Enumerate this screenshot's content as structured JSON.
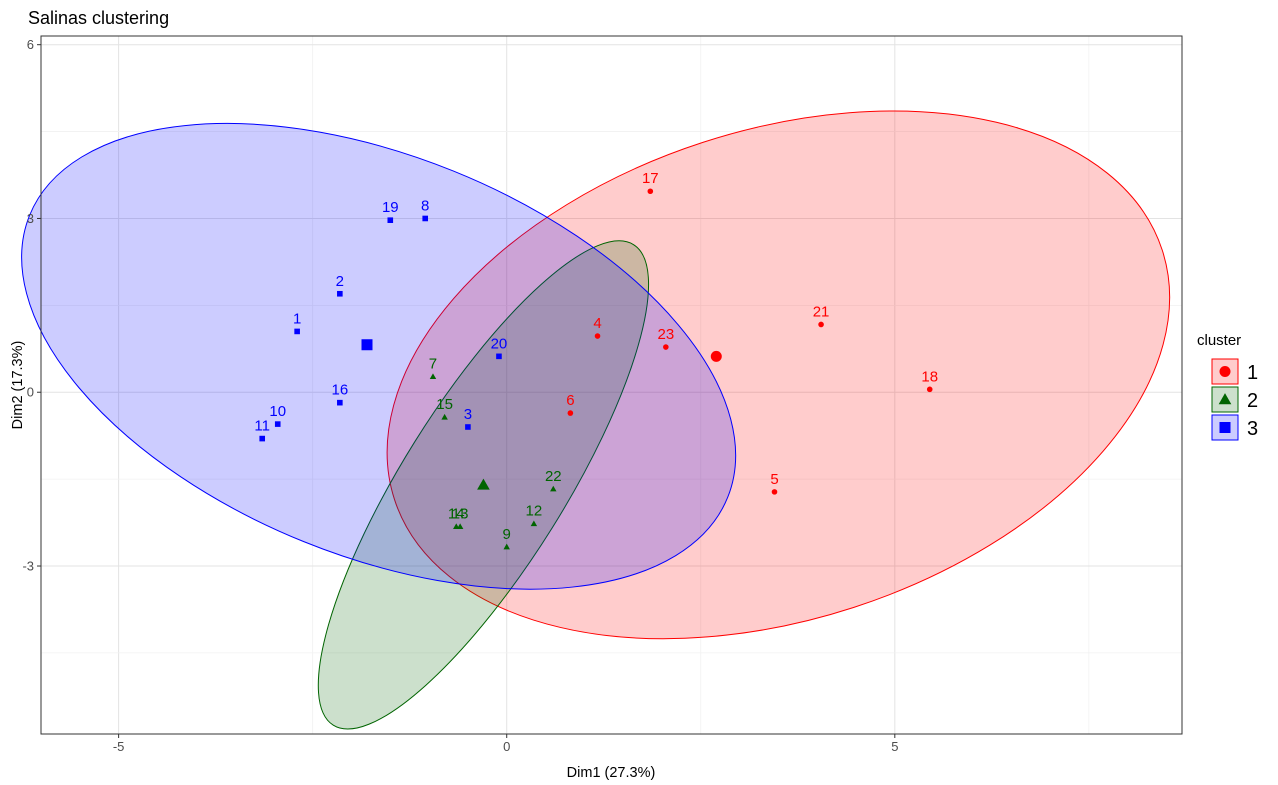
{
  "chart_data": {
    "type": "scatter",
    "title": "Salinas clustering",
    "xlabel": "Dim1 (27.3%)",
    "ylabel": "Dim2 (17.3%)",
    "xlim": [
      -6.0,
      8.7
    ],
    "ylim": [
      -5.9,
      6.15
    ],
    "x_ticks": [
      -5,
      0,
      5
    ],
    "y_ticks": [
      -3,
      0,
      3
    ],
    "x_tick_labels": [
      "-5",
      "0",
      "5"
    ],
    "y_tick_labels": [
      "-3",
      "0",
      "3",
      "6"
    ],
    "y_ticks_all": [
      -3,
      0,
      3,
      6
    ],
    "grid": true,
    "legend": {
      "title": "cluster",
      "placement": "right"
    },
    "series": [
      {
        "name": "1",
        "color": "#ff0000",
        "marker": "circle",
        "centroid": {
          "x": 2.7,
          "y": 0.62
        },
        "points": [
          {
            "label": "17",
            "x": 1.85,
            "y": 3.47
          },
          {
            "label": "21",
            "x": 4.05,
            "y": 1.17
          },
          {
            "label": "23",
            "x": 2.05,
            "y": 0.78
          },
          {
            "label": "4",
            "x": 1.17,
            "y": 0.97
          },
          {
            "label": "18",
            "x": 5.45,
            "y": 0.05
          },
          {
            "label": "6",
            "x": 0.82,
            "y": -0.36
          },
          {
            "label": "5",
            "x": 3.45,
            "y": -1.72
          }
        ],
        "ellipse": {
          "cx": 3.5,
          "cy": 0.3,
          "rx": 5.2,
          "ry": 4.22,
          "angle": -18
        }
      },
      {
        "name": "2",
        "color": "#006400",
        "marker": "triangle",
        "centroid": {
          "x": -0.3,
          "y": -1.6
        },
        "points": [
          {
            "label": "7",
            "x": -0.95,
            "y": 0.27
          },
          {
            "label": "15",
            "x": -0.8,
            "y": -0.43
          },
          {
            "label": "22",
            "x": 0.6,
            "y": -1.67
          },
          {
            "label": "12",
            "x": 0.35,
            "y": -2.27
          },
          {
            "label": "14",
            "x": -0.65,
            "y": -2.32
          },
          {
            "label": "13",
            "x": -0.6,
            "y": -2.32
          },
          {
            "label": "9",
            "x": 0.0,
            "y": -2.67
          }
        ],
        "ellipse": {
          "cx": -0.3,
          "cy": -1.6,
          "rx": 3.65,
          "ry": 1.4,
          "angle": -58
        }
      },
      {
        "name": "3",
        "color": "#0000ff",
        "marker": "square",
        "centroid": {
          "x": -1.8,
          "y": 0.82
        },
        "points": [
          {
            "label": "19",
            "x": -1.5,
            "y": 2.97
          },
          {
            "label": "8",
            "x": -1.05,
            "y": 3.0
          },
          {
            "label": "2",
            "x": -2.15,
            "y": 1.7
          },
          {
            "label": "1",
            "x": -2.7,
            "y": 1.05
          },
          {
            "label": "20",
            "x": -0.1,
            "y": 0.62
          },
          {
            "label": "16",
            "x": -2.15,
            "y": -0.18
          },
          {
            "label": "3",
            "x": -0.5,
            "y": -0.6
          },
          {
            "label": "10",
            "x": -2.95,
            "y": -0.55
          },
          {
            "label": "11",
            "x": -3.15,
            "y": -0.8
          }
        ],
        "ellipse": {
          "cx": -1.65,
          "cy": 0.62,
          "rx": 4.85,
          "ry": 3.45,
          "angle": 22
        }
      }
    ]
  }
}
